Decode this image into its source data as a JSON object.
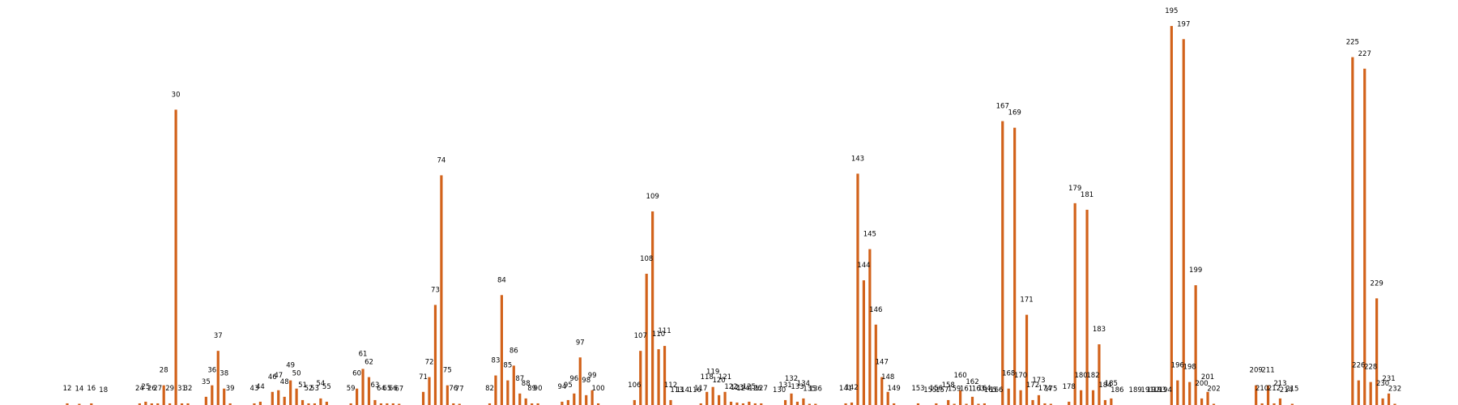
{
  "colors": {
    "bar": "#d2621a",
    "label_text": "#000000",
    "background": "#ffffff"
  },
  "chart_data": {
    "type": "bar",
    "title": "",
    "xlabel": "",
    "ylabel": "",
    "grid": false,
    "legend": "none",
    "axes_visible": false,
    "y_range": [
      0,
      225
    ],
    "bars": [
      {
        "label": "12",
        "value": 1
      },
      {
        "label": "14",
        "value": 0.5
      },
      {
        "label": "16",
        "value": 1
      },
      {
        "label": "18",
        "value": 0
      },
      {
        "label": "24",
        "value": 1
      },
      {
        "label": "25",
        "value": 2
      },
      {
        "label": "26",
        "value": 1
      },
      {
        "label": "27",
        "value": 1
      },
      {
        "label": "28",
        "value": 12
      },
      {
        "label": "29",
        "value": 1
      },
      {
        "label": "30",
        "value": 180
      },
      {
        "label": "31",
        "value": 1
      },
      {
        "label": "32",
        "value": 1
      },
      {
        "label": "35",
        "value": 5
      },
      {
        "label": "36",
        "value": 12
      },
      {
        "label": "37",
        "value": 33
      },
      {
        "label": "38",
        "value": 10
      },
      {
        "label": "39",
        "value": 1
      },
      {
        "label": "43",
        "value": 1
      },
      {
        "label": "44",
        "value": 2
      },
      {
        "label": "46",
        "value": 8
      },
      {
        "label": "47",
        "value": 9
      },
      {
        "label": "48",
        "value": 5
      },
      {
        "label": "49",
        "value": 15
      },
      {
        "label": "50",
        "value": 10
      },
      {
        "label": "51",
        "value": 3
      },
      {
        "label": "52",
        "value": 1
      },
      {
        "label": "53",
        "value": 1
      },
      {
        "label": "54",
        "value": 4
      },
      {
        "label": "55",
        "value": 2
      },
      {
        "label": "59",
        "value": 1
      },
      {
        "label": "60",
        "value": 10
      },
      {
        "label": "61",
        "value": 22
      },
      {
        "label": "62",
        "value": 17
      },
      {
        "label": "63",
        "value": 3
      },
      {
        "label": "64",
        "value": 1
      },
      {
        "label": "65",
        "value": 1
      },
      {
        "label": "66",
        "value": 1
      },
      {
        "label": "67",
        "value": 0.5
      },
      {
        "label": "71",
        "value": 8
      },
      {
        "label": "72",
        "value": 17
      },
      {
        "label": "73",
        "value": 61
      },
      {
        "label": "74",
        "value": 140
      },
      {
        "label": "75",
        "value": 12
      },
      {
        "label": "76",
        "value": 1
      },
      {
        "label": "77",
        "value": 0.5
      },
      {
        "label": "82",
        "value": 1
      },
      {
        "label": "83",
        "value": 18
      },
      {
        "label": "84",
        "value": 67
      },
      {
        "label": "85",
        "value": 15
      },
      {
        "label": "86",
        "value": 24
      },
      {
        "label": "87",
        "value": 7
      },
      {
        "label": "88",
        "value": 4
      },
      {
        "label": "89",
        "value": 1
      },
      {
        "label": "90",
        "value": 1
      },
      {
        "label": "94",
        "value": 2
      },
      {
        "label": "95",
        "value": 3
      },
      {
        "label": "96",
        "value": 7
      },
      {
        "label": "97",
        "value": 29
      },
      {
        "label": "98",
        "value": 6
      },
      {
        "label": "99",
        "value": 9
      },
      {
        "label": "100",
        "value": 1
      },
      {
        "label": "106",
        "value": 3
      },
      {
        "label": "107",
        "value": 33
      },
      {
        "label": "108",
        "value": 80
      },
      {
        "label": "109",
        "value": 118
      },
      {
        "label": "110",
        "value": 34
      },
      {
        "label": "111",
        "value": 36
      },
      {
        "label": "112",
        "value": 3
      },
      {
        "label": "113",
        "value": 0
      },
      {
        "label": "114",
        "value": 0
      },
      {
        "label": "116",
        "value": 0
      },
      {
        "label": "117",
        "value": 1
      },
      {
        "label": "118",
        "value": 8
      },
      {
        "label": "119",
        "value": 11
      },
      {
        "label": "120",
        "value": 6
      },
      {
        "label": "121",
        "value": 8
      },
      {
        "label": "122",
        "value": 2
      },
      {
        "label": "123",
        "value": 1.5
      },
      {
        "label": "124",
        "value": 1
      },
      {
        "label": "125",
        "value": 2
      },
      {
        "label": "126",
        "value": 1
      },
      {
        "label": "127",
        "value": 1
      },
      {
        "label": "130",
        "value": 0
      },
      {
        "label": "131",
        "value": 3
      },
      {
        "label": "132",
        "value": 7
      },
      {
        "label": "133",
        "value": 2
      },
      {
        "label": "134",
        "value": 4
      },
      {
        "label": "135",
        "value": 0.5
      },
      {
        "label": "136",
        "value": 0.5
      },
      {
        "label": "141",
        "value": 1
      },
      {
        "label": "142",
        "value": 1.5
      },
      {
        "label": "143",
        "value": 141
      },
      {
        "label": "144",
        "value": 76
      },
      {
        "label": "145",
        "value": 95
      },
      {
        "label": "146",
        "value": 49
      },
      {
        "label": "147",
        "value": 17
      },
      {
        "label": "148",
        "value": 8
      },
      {
        "label": "149",
        "value": 1
      },
      {
        "label": "153",
        "value": 1
      },
      {
        "label": "155",
        "value": 0
      },
      {
        "label": "156",
        "value": 1
      },
      {
        "label": "157",
        "value": 0
      },
      {
        "label": "158",
        "value": 3
      },
      {
        "label": "159",
        "value": 0.5
      },
      {
        "label": "160",
        "value": 9
      },
      {
        "label": "161",
        "value": 0.5
      },
      {
        "label": "162",
        "value": 5
      },
      {
        "label": "163",
        "value": 0.5
      },
      {
        "label": "164",
        "value": 1
      },
      {
        "label": "165",
        "value": 0
      },
      {
        "label": "166",
        "value": 0
      },
      {
        "label": "167",
        "value": 173
      },
      {
        "label": "168",
        "value": 10
      },
      {
        "label": "169",
        "value": 169
      },
      {
        "label": "170",
        "value": 9
      },
      {
        "label": "171",
        "value": 55
      },
      {
        "label": "172",
        "value": 3
      },
      {
        "label": "173",
        "value": 6
      },
      {
        "label": "174",
        "value": 1
      },
      {
        "label": "175",
        "value": 0.5
      },
      {
        "label": "178",
        "value": 2
      },
      {
        "label": "179",
        "value": 123
      },
      {
        "label": "180",
        "value": 9
      },
      {
        "label": "181",
        "value": 119
      },
      {
        "label": "182",
        "value": 9
      },
      {
        "label": "183",
        "value": 37
      },
      {
        "label": "184",
        "value": 3
      },
      {
        "label": "185",
        "value": 4
      },
      {
        "label": "186",
        "value": 0
      },
      {
        "label": "189",
        "value": 0
      },
      {
        "label": "191",
        "value": 0
      },
      {
        "label": "192",
        "value": 0
      },
      {
        "label": "193",
        "value": 0
      },
      {
        "label": "194",
        "value": 0
      },
      {
        "label": "195",
        "value": 231
      },
      {
        "label": "196",
        "value": 15
      },
      {
        "label": "197",
        "value": 223
      },
      {
        "label": "198",
        "value": 14
      },
      {
        "label": "199",
        "value": 73
      },
      {
        "label": "200",
        "value": 4
      },
      {
        "label": "201",
        "value": 8
      },
      {
        "label": "202",
        "value": 0.5
      },
      {
        "label": "209",
        "value": 12
      },
      {
        "label": "210",
        "value": 1
      },
      {
        "label": "211",
        "value": 12
      },
      {
        "label": "212",
        "value": 1
      },
      {
        "label": "213",
        "value": 4
      },
      {
        "label": "214",
        "value": 0
      },
      {
        "label": "215",
        "value": 0.5
      },
      {
        "label": "225",
        "value": 212
      },
      {
        "label": "226",
        "value": 15
      },
      {
        "label": "227",
        "value": 205
      },
      {
        "label": "228",
        "value": 14
      },
      {
        "label": "229",
        "value": 65
      },
      {
        "label": "230",
        "value": 4
      },
      {
        "label": "231",
        "value": 7
      },
      {
        "label": "232",
        "value": 0.5
      }
    ]
  }
}
